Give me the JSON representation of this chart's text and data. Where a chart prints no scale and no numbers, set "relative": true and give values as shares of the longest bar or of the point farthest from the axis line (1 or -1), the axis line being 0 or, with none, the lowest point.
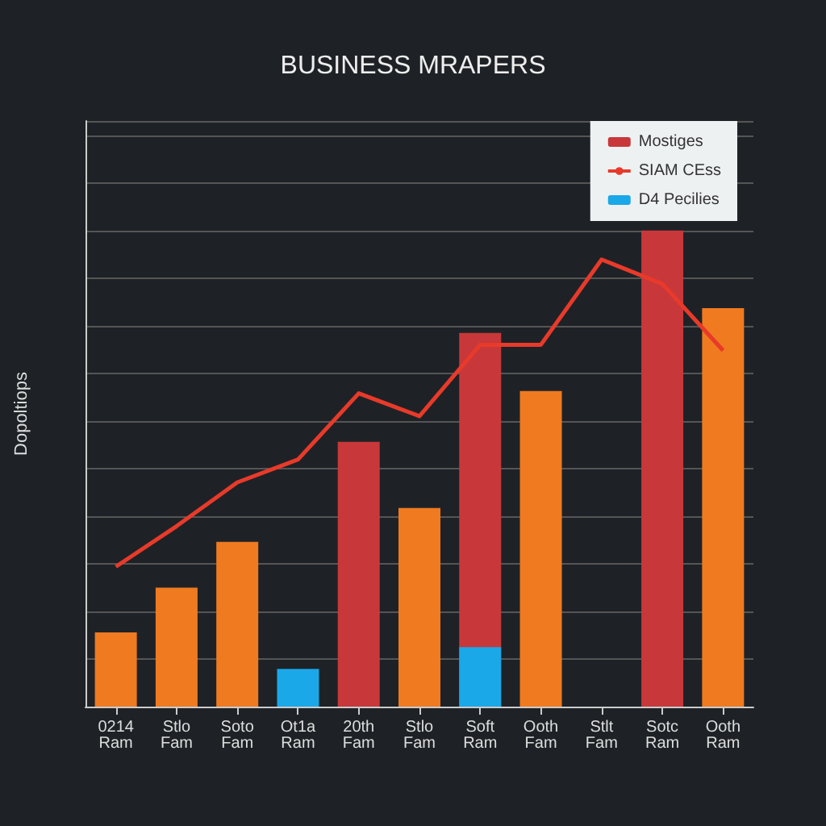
{
  "chart_data": {
    "type": "bar",
    "title": "BUSINESS MRAPERS",
    "ylabel": "Dopoltiops",
    "relative": true,
    "categories": [
      "0214\nRam",
      "Stlo\nFam",
      "Soto\nFam",
      "Ot1a\nRam",
      "20th\nFam",
      "Stlo\nFam",
      "Soft\nRam",
      "Ooth\nFam",
      "Stlt\nFam",
      "Sotc\nRam",
      "Ooth\nRam"
    ],
    "series": [
      {
        "color": "#f07a20",
        "values": [
          0.156,
          0.25,
          0.346,
          null,
          null,
          0.417,
          null,
          0.663,
          null,
          null,
          0.837
        ]
      },
      {
        "name": "Mostiges",
        "color": "#c8383a",
        "values": [
          null,
          null,
          null,
          null,
          0.556,
          null,
          0.785,
          null,
          null,
          1,
          null
        ]
      },
      {
        "name": "SIAM CEss",
        "type": "line",
        "color": "#e83a2a",
        "values": [
          0.294,
          0.379,
          0.471,
          0.519,
          0.658,
          0.61,
          0.76,
          0.76,
          0.939,
          0.888,
          0.748
        ]
      },
      {
        "name": "D4 Pecilies",
        "color": "#1aa8e8",
        "values": [
          null,
          null,
          null,
          0.079,
          null,
          null,
          0.125,
          null,
          null,
          null,
          null
        ]
      }
    ],
    "grid": "y",
    "legend": "top right",
    "marker": "none",
    "line_style": "solid"
  }
}
